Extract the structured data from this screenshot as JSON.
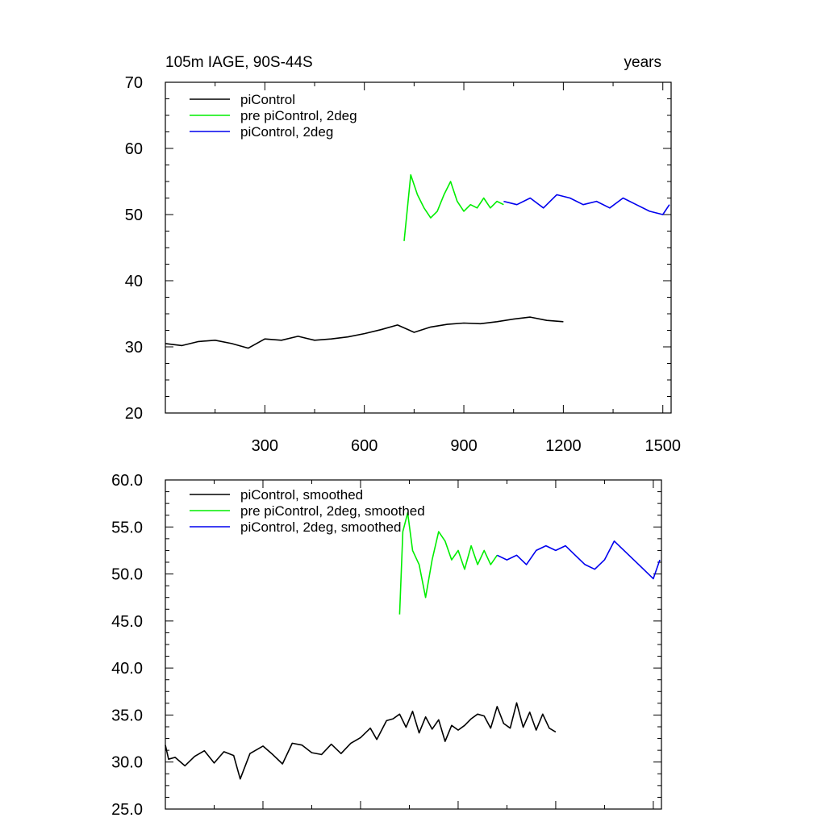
{
  "chart_data": [
    {
      "type": "line",
      "title_left": "105m IAGE, 90S-44S",
      "title_right": "years",
      "xlim": [
        0,
        1525
      ],
      "ylim": [
        20,
        70
      ],
      "xticks": [
        300,
        600,
        900,
        1200,
        1500
      ],
      "yticks": [
        20,
        30,
        40,
        50,
        60,
        70
      ],
      "xtick_labels": [
        "300",
        "600",
        "900",
        "1200",
        "1500"
      ],
      "ytick_labels": [
        "20",
        "30",
        "40",
        "50",
        "60",
        "70"
      ],
      "legend_position": "top-left",
      "series": [
        {
          "name": "piControl",
          "color": "#000000",
          "x": [
            0,
            50,
            100,
            150,
            200,
            250,
            300,
            350,
            400,
            450,
            500,
            550,
            600,
            650,
            700,
            750,
            800,
            850,
            900,
            950,
            1000,
            1050,
            1100,
            1150,
            1200
          ],
          "y": [
            30.5,
            30.2,
            30.8,
            31.0,
            30.5,
            29.8,
            31.2,
            31.0,
            31.6,
            31.0,
            31.2,
            31.5,
            32.0,
            32.6,
            33.3,
            32.2,
            33.0,
            33.4,
            33.6,
            33.5,
            33.8,
            34.2,
            34.5,
            34.0,
            33.8
          ]
        },
        {
          "name": "pre piControl, 2deg",
          "color": "#00ee00",
          "x": [
            720,
            740,
            760,
            780,
            800,
            820,
            840,
            860,
            880,
            900,
            920,
            940,
            960,
            980,
            1000,
            1020
          ],
          "y": [
            46.0,
            56.0,
            53.0,
            51.0,
            49.5,
            50.5,
            53.0,
            55.0,
            52.0,
            50.5,
            51.5,
            51.0,
            52.5,
            51.0,
            52.0,
            51.5
          ]
        },
        {
          "name": "piControl, 2deg",
          "color": "#0000ee",
          "x": [
            1020,
            1060,
            1100,
            1140,
            1180,
            1220,
            1260,
            1300,
            1340,
            1380,
            1420,
            1460,
            1500,
            1520
          ],
          "y": [
            52.0,
            51.5,
            52.5,
            51.0,
            53.0,
            52.5,
            51.5,
            52.0,
            51.0,
            52.5,
            51.5,
            50.5,
            50.0,
            51.5
          ]
        }
      ]
    },
    {
      "type": "line",
      "xlim": [
        0,
        1525
      ],
      "ylim": [
        25,
        60
      ],
      "xticks": [
        300,
        600,
        900,
        1200,
        1500
      ],
      "yticks": [
        25,
        30,
        35,
        40,
        45,
        50,
        55,
        60
      ],
      "ytick_labels": [
        "25.0",
        "30.0",
        "35.0",
        "40.0",
        "45.0",
        "50.0",
        "55.0",
        "60.0"
      ],
      "legend_position": "top-left",
      "series": [
        {
          "name": "piControl, smoothed",
          "color": "#000000",
          "x": [
            0,
            10,
            30,
            60,
            90,
            120,
            150,
            180,
            210,
            230,
            260,
            300,
            330,
            360,
            390,
            420,
            450,
            480,
            510,
            540,
            570,
            600,
            630,
            650,
            680,
            700,
            720,
            740,
            760,
            780,
            800,
            820,
            840,
            860,
            880,
            900,
            920,
            940,
            960,
            980,
            1000,
            1020,
            1040,
            1060,
            1080,
            1100,
            1120,
            1140,
            1160,
            1180,
            1200
          ],
          "y": [
            31.8,
            30.3,
            30.5,
            29.6,
            30.6,
            31.2,
            29.9,
            31.1,
            30.7,
            28.2,
            30.9,
            31.7,
            30.8,
            29.8,
            32.0,
            31.8,
            31.0,
            30.8,
            31.9,
            30.9,
            32.0,
            32.6,
            33.6,
            32.4,
            34.4,
            34.6,
            35.1,
            33.7,
            35.4,
            33.1,
            34.8,
            33.5,
            34.5,
            32.2,
            33.9,
            33.4,
            33.9,
            34.6,
            35.1,
            34.9,
            33.6,
            35.9,
            34.1,
            33.6,
            36.3,
            33.7,
            35.3,
            33.4,
            35.1,
            33.6,
            33.2
          ]
        },
        {
          "name": "pre piControl, 2deg, smoothed",
          "color": "#00ee00",
          "x": [
            720,
            730,
            745,
            760,
            780,
            800,
            820,
            840,
            860,
            880,
            900,
            920,
            940,
            960,
            980,
            1000,
            1020
          ],
          "y": [
            45.7,
            54.5,
            56.5,
            52.5,
            51.0,
            47.5,
            51.5,
            54.5,
            53.5,
            51.5,
            52.5,
            50.5,
            53.0,
            51.0,
            52.5,
            51.0,
            52.0
          ]
        },
        {
          "name": "piControl, 2deg, smoothed",
          "color": "#0000ee",
          "x": [
            1020,
            1050,
            1080,
            1110,
            1140,
            1170,
            1200,
            1230,
            1260,
            1290,
            1320,
            1350,
            1380,
            1410,
            1440,
            1470,
            1500,
            1520
          ],
          "y": [
            52.0,
            51.5,
            52.0,
            51.0,
            52.5,
            53.0,
            52.5,
            53.0,
            52.0,
            51.0,
            50.5,
            51.5,
            53.5,
            52.5,
            51.5,
            50.5,
            49.5,
            51.5
          ]
        }
      ]
    }
  ]
}
